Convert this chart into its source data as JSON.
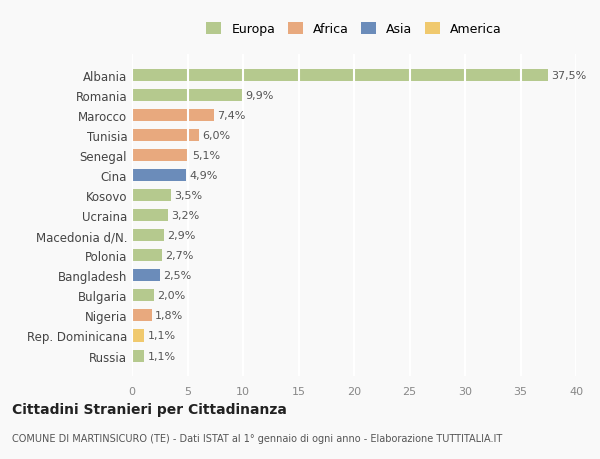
{
  "countries": [
    "Albania",
    "Romania",
    "Marocco",
    "Tunisia",
    "Senegal",
    "Cina",
    "Kosovo",
    "Ucraina",
    "Macedonia d/N.",
    "Polonia",
    "Bangladesh",
    "Bulgaria",
    "Nigeria",
    "Rep. Dominicana",
    "Russia"
  ],
  "values": [
    37.5,
    9.9,
    7.4,
    6.0,
    5.1,
    4.9,
    3.5,
    3.2,
    2.9,
    2.7,
    2.5,
    2.0,
    1.8,
    1.1,
    1.1
  ],
  "labels": [
    "37,5%",
    "9,9%",
    "7,4%",
    "6,0%",
    "5,1%",
    "4,9%",
    "3,5%",
    "3,2%",
    "2,9%",
    "2,7%",
    "2,5%",
    "2,0%",
    "1,8%",
    "1,1%",
    "1,1%"
  ],
  "colors": [
    "#b5c98e",
    "#b5c98e",
    "#e8a97e",
    "#e8a97e",
    "#e8a97e",
    "#6b8cba",
    "#b5c98e",
    "#b5c98e",
    "#b5c98e",
    "#b5c98e",
    "#6b8cba",
    "#b5c98e",
    "#e8a97e",
    "#f0c96e",
    "#b5c98e"
  ],
  "legend_labels": [
    "Europa",
    "Africa",
    "Asia",
    "America"
  ],
  "legend_colors": [
    "#b5c98e",
    "#e8a97e",
    "#6b8cba",
    "#f0c96e"
  ],
  "title": "Cittadini Stranieri per Cittadinanza",
  "subtitle": "COMUNE DI MARTINSICURO (TE) - Dati ISTAT al 1° gennaio di ogni anno - Elaborazione TUTTITALIA.IT",
  "xlim": [
    0,
    40
  ],
  "xticks": [
    0,
    5,
    10,
    15,
    20,
    25,
    30,
    35,
    40
  ],
  "background_color": "#f9f9f9",
  "grid_color": "#ffffff",
  "bar_height": 0.6
}
